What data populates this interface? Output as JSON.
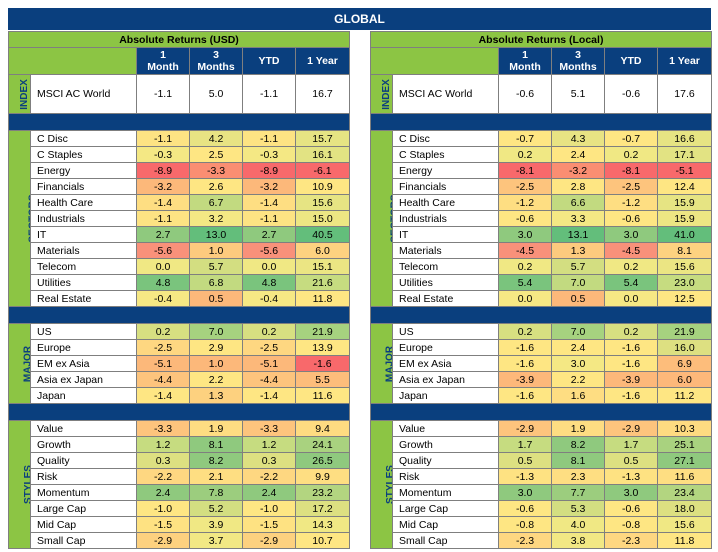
{
  "banner": "GLOBAL",
  "panels": [
    {
      "id": "usd",
      "title": "Absolute Returns (USD)",
      "columns": [
        "1\nMonth",
        "3\nMonths",
        "YTD",
        "1 Year"
      ],
      "groups": [
        {
          "label": "INDEX",
          "rows": [
            {
              "name": "MSCI AC World",
              "values": [
                "-1.1",
                "5.0",
                "-1.1",
                "16.7"
              ],
              "colors": [
                "#ffffff",
                "#ffffff",
                "#ffffff",
                "#ffffff"
              ]
            }
          ]
        },
        {
          "label": "SECTORS",
          "rows": [
            {
              "name": "C Disc",
              "values": [
                "-1.1",
                "4.2",
                "-1.1",
                "15.7"
              ],
              "colors": [
                "#fde383",
                "#e8e383",
                "#fde383",
                "#e6e483"
              ]
            },
            {
              "name": "C Staples",
              "values": [
                "-0.3",
                "2.5",
                "-0.3",
                "16.1"
              ],
              "colors": [
                "#f4e884",
                "#fee683",
                "#f4e884",
                "#e2e383"
              ]
            },
            {
              "name": "Energy",
              "values": [
                "-8.9",
                "-3.3",
                "-8.9",
                "-6.1"
              ],
              "colors": [
                "#f8696b",
                "#fa8e72",
                "#f8696b",
                "#f8696b"
              ]
            },
            {
              "name": "Financials",
              "values": [
                "-3.2",
                "2.6",
                "-3.2",
                "10.9"
              ],
              "colors": [
                "#fcb87a",
                "#fee683",
                "#fcb87a",
                "#fee683"
              ]
            },
            {
              "name": "Health Care",
              "values": [
                "-1.4",
                "6.7",
                "-1.4",
                "15.6"
              ],
              "colors": [
                "#fede82",
                "#c2da80",
                "#fede82",
                "#e6e483"
              ]
            },
            {
              "name": "Industrials",
              "values": [
                "-1.1",
                "3.2",
                "-1.1",
                "15.0"
              ],
              "colors": [
                "#fde383",
                "#f4e884",
                "#fde383",
                "#ede683"
              ]
            },
            {
              "name": "IT",
              "values": [
                "2.7",
                "13.0",
                "2.7",
                "40.5"
              ],
              "colors": [
                "#8fc97e",
                "#63be7b",
                "#8fc97e",
                "#63be7b"
              ]
            },
            {
              "name": "Materials",
              "values": [
                "-5.6",
                "1.0",
                "-5.6",
                "6.0"
              ],
              "colors": [
                "#f9917a",
                "#fdca7e",
                "#f9917a",
                "#fed280"
              ]
            },
            {
              "name": "Telecom",
              "values": [
                "0.0",
                "5.7",
                "0.0",
                "15.1"
              ],
              "colors": [
                "#f0e884",
                "#d3de81",
                "#f0e884",
                "#ebe583"
              ]
            },
            {
              "name": "Utilities",
              "values": [
                "4.8",
                "6.8",
                "4.8",
                "21.6"
              ],
              "colors": [
                "#7ac47d",
                "#c2da80",
                "#7ac47d",
                "#c6dc80"
              ]
            },
            {
              "name": "Real Estate",
              "values": [
                "-0.4",
                "0.5",
                "-0.4",
                "11.8"
              ],
              "colors": [
                "#f6e884",
                "#fcb87a",
                "#f6e884",
                "#fee683"
              ]
            }
          ]
        },
        {
          "label": "MAJOR\nMARKETS",
          "rows": [
            {
              "name": "US",
              "values": [
                "0.2",
                "7.0",
                "0.2",
                "21.9"
              ],
              "colors": [
                "#d7df81",
                "#a6d27f",
                "#d7df81",
                "#a6d27f"
              ]
            },
            {
              "name": "Europe",
              "values": [
                "-2.5",
                "2.9",
                "-2.5",
                "13.9"
              ],
              "colors": [
                "#fed781",
                "#fee683",
                "#fed781",
                "#fee683"
              ]
            },
            {
              "name": "EM ex Asia",
              "values": [
                "-5.1",
                "1.0",
                "-5.1",
                "-1.6"
              ],
              "colors": [
                "#fcb87a",
                "#fcb87a",
                "#fcb87a",
                "#f8696b"
              ]
            },
            {
              "name": "Asia ex Japan",
              "values": [
                "-4.4",
                "2.2",
                "-4.4",
                "5.5"
              ],
              "colors": [
                "#fdc47d",
                "#fee683",
                "#fdc47d",
                "#fdbd7b"
              ]
            },
            {
              "name": "Japan",
              "values": [
                "-1.4",
                "1.3",
                "-1.4",
                "11.6"
              ],
              "colors": [
                "#fee683",
                "#fdd17f",
                "#fee683",
                "#fee683"
              ]
            }
          ]
        },
        {
          "label": "STYLES",
          "rows": [
            {
              "name": "Value",
              "values": [
                "-3.3",
                "1.9",
                "-3.3",
                "9.4"
              ],
              "colors": [
                "#fdc47d",
                "#fedd82",
                "#fdc47d",
                "#fedb81"
              ]
            },
            {
              "name": "Growth",
              "values": [
                "1.2",
                "8.1",
                "1.2",
                "24.1"
              ],
              "colors": [
                "#c6dc80",
                "#8fc97e",
                "#c6dc80",
                "#a9d27f"
              ]
            },
            {
              "name": "Quality",
              "values": [
                "0.3",
                "8.2",
                "0.3",
                "26.5"
              ],
              "colors": [
                "#dde081",
                "#8fc97e",
                "#dde081",
                "#8fc97e"
              ]
            },
            {
              "name": "Risk",
              "values": [
                "-2.2",
                "2.1",
                "-2.2",
                "9.9"
              ],
              "colors": [
                "#fed781",
                "#fede82",
                "#fed781",
                "#fede82"
              ]
            },
            {
              "name": "Momentum",
              "values": [
                "2.4",
                "7.8",
                "2.4",
                "23.2"
              ],
              "colors": [
                "#8fc97e",
                "#9ccd7e",
                "#8fc97e",
                "#b3d580"
              ]
            },
            {
              "name": "Large Cap",
              "values": [
                "-1.0",
                "5.2",
                "-1.0",
                "17.2"
              ],
              "colors": [
                "#fee683",
                "#d3de81",
                "#fee683",
                "#dde081"
              ]
            },
            {
              "name": "Mid Cap",
              "values": [
                "-1.5",
                "3.9",
                "-1.5",
                "14.3"
              ],
              "colors": [
                "#fee282",
                "#f0e884",
                "#fee282",
                "#f0e884"
              ]
            },
            {
              "name": "Small Cap",
              "values": [
                "-2.9",
                "3.7",
                "-2.9",
                "10.7"
              ],
              "colors": [
                "#fdd17f",
                "#f2e884",
                "#fdd17f",
                "#fee683"
              ]
            }
          ]
        }
      ]
    },
    {
      "id": "local",
      "title": "Absolute Returns (Local)",
      "columns": [
        "1\nMonth",
        "3\nMonths",
        "YTD",
        "1 Year"
      ],
      "groups": [
        {
          "label": "INDEX",
          "rows": [
            {
              "name": "MSCI AC World",
              "values": [
                "-0.6",
                "5.1",
                "-0.6",
                "17.6"
              ],
              "colors": [
                "#ffffff",
                "#ffffff",
                "#ffffff",
                "#ffffff"
              ]
            }
          ]
        },
        {
          "label": "SECTORS",
          "rows": [
            {
              "name": "C Disc",
              "values": [
                "-0.7",
                "4.3",
                "-0.7",
                "16.6"
              ],
              "colors": [
                "#fee683",
                "#e8e383",
                "#fee683",
                "#e6e483"
              ]
            },
            {
              "name": "C Staples",
              "values": [
                "0.2",
                "2.4",
                "0.2",
                "17.1"
              ],
              "colors": [
                "#f0e884",
                "#fee683",
                "#f0e884",
                "#e2e383"
              ]
            },
            {
              "name": "Energy",
              "values": [
                "-8.1",
                "-3.2",
                "-8.1",
                "-5.1"
              ],
              "colors": [
                "#f8696b",
                "#fa8e72",
                "#f8696b",
                "#f8696b"
              ]
            },
            {
              "name": "Financials",
              "values": [
                "-2.5",
                "2.8",
                "-2.5",
                "12.4"
              ],
              "colors": [
                "#fdc47d",
                "#fee683",
                "#fdc47d",
                "#fee683"
              ]
            },
            {
              "name": "Health Care",
              "values": [
                "-1.2",
                "6.6",
                "-1.2",
                "15.9"
              ],
              "colors": [
                "#fede82",
                "#c2da80",
                "#fede82",
                "#e6e483"
              ]
            },
            {
              "name": "Industrials",
              "values": [
                "-0.6",
                "3.3",
                "-0.6",
                "15.9"
              ],
              "colors": [
                "#fee683",
                "#f4e884",
                "#fee683",
                "#ede683"
              ]
            },
            {
              "name": "IT",
              "values": [
                "3.0",
                "13.1",
                "3.0",
                "41.0"
              ],
              "colors": [
                "#8fc97e",
                "#63be7b",
                "#8fc97e",
                "#63be7b"
              ]
            },
            {
              "name": "Materials",
              "values": [
                "-4.5",
                "1.3",
                "-4.5",
                "8.1"
              ],
              "colors": [
                "#f9917a",
                "#fdca7e",
                "#f9917a",
                "#fed280"
              ]
            },
            {
              "name": "Telecom",
              "values": [
                "0.2",
                "5.7",
                "0.2",
                "15.6"
              ],
              "colors": [
                "#f0e884",
                "#d3de81",
                "#f0e884",
                "#ebe583"
              ]
            },
            {
              "name": "Utilities",
              "values": [
                "5.4",
                "7.0",
                "5.4",
                "23.0"
              ],
              "colors": [
                "#7ac47d",
                "#c2da80",
                "#7ac47d",
                "#c6dc80"
              ]
            },
            {
              "name": "Real Estate",
              "values": [
                "0.0",
                "0.5",
                "0.0",
                "12.5"
              ],
              "colors": [
                "#f6e884",
                "#fcb87a",
                "#f6e884",
                "#fee683"
              ]
            }
          ]
        },
        {
          "label": "MAJOR\nMARKETS",
          "rows": [
            {
              "name": "US",
              "values": [
                "0.2",
                "7.0",
                "0.2",
                "21.9"
              ],
              "colors": [
                "#d7df81",
                "#a6d27f",
                "#d7df81",
                "#a6d27f"
              ]
            },
            {
              "name": "Europe",
              "values": [
                "-1.6",
                "2.4",
                "-1.6",
                "16.0"
              ],
              "colors": [
                "#fee683",
                "#fee683",
                "#fee683",
                "#dde081"
              ]
            },
            {
              "name": "EM ex Asia",
              "values": [
                "-1.6",
                "3.0",
                "-1.6",
                "6.9"
              ],
              "colors": [
                "#fee683",
                "#f4e884",
                "#fee683",
                "#fdbd7b"
              ]
            },
            {
              "name": "Asia ex Japan",
              "values": [
                "-3.9",
                "2.2",
                "-3.9",
                "6.0"
              ],
              "colors": [
                "#fdb87a",
                "#fee683",
                "#fdb87a",
                "#fdb87a"
              ]
            },
            {
              "name": "Japan",
              "values": [
                "-1.6",
                "1.6",
                "-1.6",
                "11.2"
              ],
              "colors": [
                "#fee683",
                "#fedd82",
                "#fee683",
                "#fee683"
              ]
            }
          ]
        },
        {
          "label": "STYLES",
          "rows": [
            {
              "name": "Value",
              "values": [
                "-2.9",
                "1.9",
                "-2.9",
                "10.3"
              ],
              "colors": [
                "#fdc47d",
                "#fedd82",
                "#fdc47d",
                "#fedb81"
              ]
            },
            {
              "name": "Growth",
              "values": [
                "1.7",
                "8.2",
                "1.7",
                "25.1"
              ],
              "colors": [
                "#c6dc80",
                "#8fc97e",
                "#c6dc80",
                "#a9d27f"
              ]
            },
            {
              "name": "Quality",
              "values": [
                "0.5",
                "8.1",
                "0.5",
                "27.1"
              ],
              "colors": [
                "#dde081",
                "#8fc97e",
                "#dde081",
                "#8fc97e"
              ]
            },
            {
              "name": "Risk",
              "values": [
                "-1.3",
                "2.3",
                "-1.3",
                "11.6"
              ],
              "colors": [
                "#fee282",
                "#fede82",
                "#fee282",
                "#fede82"
              ]
            },
            {
              "name": "Momentum",
              "values": [
                "3.0",
                "7.7",
                "3.0",
                "23.4"
              ],
              "colors": [
                "#8fc97e",
                "#9ccd7e",
                "#8fc97e",
                "#b3d580"
              ]
            },
            {
              "name": "Large Cap",
              "values": [
                "-0.6",
                "5.3",
                "-0.6",
                "18.0"
              ],
              "colors": [
                "#fee683",
                "#d3de81",
                "#fee683",
                "#dde081"
              ]
            },
            {
              "name": "Mid Cap",
              "values": [
                "-0.8",
                "4.0",
                "-0.8",
                "15.6"
              ],
              "colors": [
                "#fee683",
                "#f0e884",
                "#fee683",
                "#f0e884"
              ]
            },
            {
              "name": "Small Cap",
              "values": [
                "-2.3",
                "3.8",
                "-2.3",
                "11.8"
              ],
              "colors": [
                "#fed781",
                "#f2e884",
                "#fed781",
                "#fee683"
              ]
            }
          ]
        }
      ]
    }
  ]
}
